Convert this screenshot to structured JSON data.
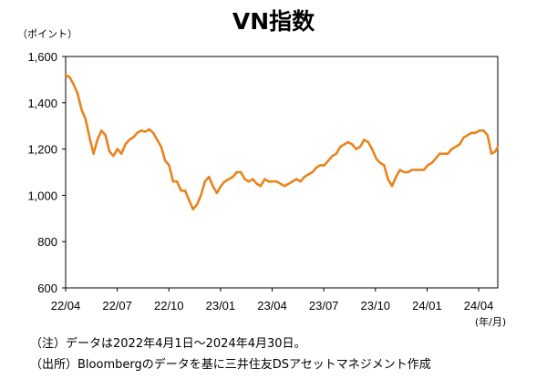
{
  "chart_data": {
    "type": "line",
    "title": "VN指数",
    "ylabel": "（ポイント）",
    "xlabel": "(年/月)",
    "ylim": [
      600,
      1600
    ],
    "yticks": [
      600,
      800,
      1000,
      1200,
      1400,
      1600
    ],
    "ytick_labels": [
      "600",
      "800",
      "1,000",
      "1,200",
      "1,400",
      "1,600"
    ],
    "xtick_labels": [
      "22/04",
      "22/07",
      "22/10",
      "23/01",
      "23/04",
      "23/07",
      "23/10",
      "24/01",
      "24/04"
    ],
    "grid": false,
    "line_color": "#E8841E",
    "series": [
      {
        "name": "",
        "x": [
          "2022-04-01",
          "2022-04-08",
          "2022-04-15",
          "2022-04-22",
          "2022-04-29",
          "2022-05-06",
          "2022-05-13",
          "2022-05-20",
          "2022-05-27",
          "2022-06-03",
          "2022-06-10",
          "2022-06-17",
          "2022-06-24",
          "2022-07-01",
          "2022-07-08",
          "2022-07-15",
          "2022-07-22",
          "2022-07-29",
          "2022-08-05",
          "2022-08-12",
          "2022-08-19",
          "2022-08-26",
          "2022-09-02",
          "2022-09-09",
          "2022-09-16",
          "2022-09-23",
          "2022-09-30",
          "2022-10-07",
          "2022-10-14",
          "2022-10-21",
          "2022-10-28",
          "2022-11-04",
          "2022-11-11",
          "2022-11-18",
          "2022-11-25",
          "2022-12-02",
          "2022-12-09",
          "2022-12-16",
          "2022-12-23",
          "2022-12-30",
          "2023-01-06",
          "2023-01-13",
          "2023-01-20",
          "2023-01-27",
          "2023-02-03",
          "2023-02-10",
          "2023-02-17",
          "2023-02-24",
          "2023-03-03",
          "2023-03-10",
          "2023-03-17",
          "2023-03-24",
          "2023-03-31",
          "2023-04-07",
          "2023-04-14",
          "2023-04-21",
          "2023-04-28",
          "2023-05-05",
          "2023-05-12",
          "2023-05-19",
          "2023-05-26",
          "2023-06-02",
          "2023-06-09",
          "2023-06-16",
          "2023-06-23",
          "2023-06-30",
          "2023-07-07",
          "2023-07-14",
          "2023-07-21",
          "2023-07-28",
          "2023-08-04",
          "2023-08-11",
          "2023-08-18",
          "2023-08-25",
          "2023-09-01",
          "2023-09-08",
          "2023-09-15",
          "2023-09-22",
          "2023-09-29",
          "2023-10-06",
          "2023-10-13",
          "2023-10-20",
          "2023-10-27",
          "2023-11-03",
          "2023-11-10",
          "2023-11-17",
          "2023-11-24",
          "2023-12-01",
          "2023-12-08",
          "2023-12-15",
          "2023-12-22",
          "2023-12-29",
          "2024-01-05",
          "2024-01-12",
          "2024-01-19",
          "2024-01-26",
          "2024-02-02",
          "2024-02-09",
          "2024-02-16",
          "2024-02-23",
          "2024-03-01",
          "2024-03-08",
          "2024-03-15",
          "2024-03-22",
          "2024-03-29",
          "2024-04-05",
          "2024-04-12",
          "2024-04-19",
          "2024-04-26",
          "2024-04-30"
        ],
        "values": [
          1520,
          1510,
          1480,
          1440,
          1370,
          1330,
          1250,
          1180,
          1240,
          1280,
          1260,
          1190,
          1170,
          1200,
          1180,
          1220,
          1240,
          1250,
          1270,
          1280,
          1275,
          1285,
          1270,
          1240,
          1210,
          1150,
          1130,
          1060,
          1060,
          1020,
          1020,
          980,
          940,
          960,
          1000,
          1060,
          1080,
          1040,
          1010,
          1040,
          1060,
          1070,
          1080,
          1100,
          1100,
          1070,
          1060,
          1070,
          1050,
          1040,
          1070,
          1060,
          1060,
          1060,
          1050,
          1040,
          1050,
          1060,
          1070,
          1060,
          1080,
          1090,
          1100,
          1120,
          1130,
          1130,
          1150,
          1170,
          1180,
          1210,
          1220,
          1230,
          1220,
          1200,
          1210,
          1240,
          1230,
          1200,
          1160,
          1140,
          1130,
          1070,
          1040,
          1080,
          1110,
          1100,
          1100,
          1110,
          1110,
          1110,
          1110,
          1130,
          1140,
          1160,
          1180,
          1180,
          1180,
          1200,
          1210,
          1220,
          1250,
          1260,
          1270,
          1270,
          1280,
          1280,
          1260,
          1180,
          1190,
          1210
        ]
      }
    ]
  },
  "notes": {
    "line1": "（注）データは2022年4月1日～2024年4月30日。",
    "line2": "（出所）Bloombergのデータを基に三井住友DSアセットマネジメント作成"
  }
}
